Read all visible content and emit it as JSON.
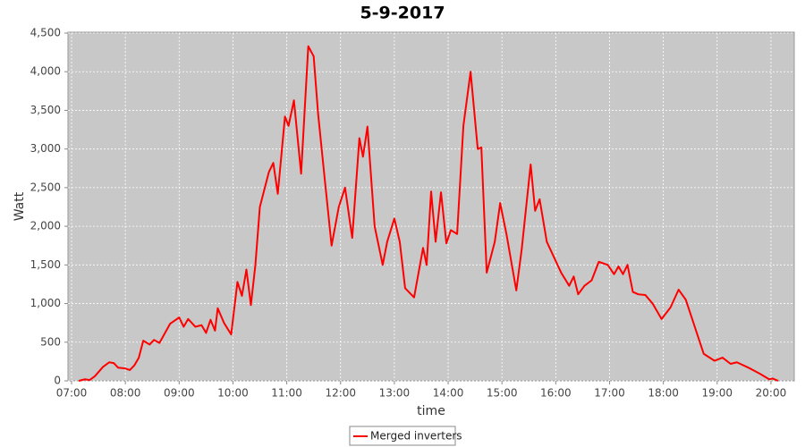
{
  "chart_data": {
    "type": "line",
    "title": "5-9-2017",
    "xlabel": "time",
    "ylabel": "Watt",
    "x": [
      "07:08",
      "07:15",
      "07:20",
      "07:26",
      "07:35",
      "07:42",
      "07:47",
      "07:52",
      "08:00",
      "08:05",
      "08:10",
      "08:15",
      "08:20",
      "08:27",
      "08:32",
      "08:38",
      "08:50",
      "09:00",
      "09:05",
      "09:10",
      "09:18",
      "09:25",
      "09:30",
      "09:35",
      "09:40",
      "09:43",
      "09:50",
      "09:58",
      "10:05",
      "10:10",
      "10:15",
      "10:20",
      "10:25",
      "10:30",
      "10:40",
      "10:45",
      "10:50",
      "10:58",
      "11:02",
      "11:08",
      "11:16",
      "11:24",
      "11:30",
      "11:35",
      "11:42",
      "11:50",
      "11:58",
      "12:05",
      "12:13",
      "12:21",
      "12:25",
      "12:30",
      "12:38",
      "12:47",
      "12:52",
      "13:00",
      "13:06",
      "13:12",
      "13:22",
      "13:32",
      "13:36",
      "13:41",
      "13:46",
      "13:52",
      "13:58",
      "14:03",
      "14:10",
      "14:17",
      "14:25",
      "14:33",
      "14:37",
      "14:43",
      "14:52",
      "14:58",
      "15:05",
      "15:16",
      "15:22",
      "15:32",
      "15:37",
      "15:42",
      "15:50",
      "15:58",
      "16:06",
      "16:15",
      "16:20",
      "16:25",
      "16:32",
      "16:40",
      "16:48",
      "16:58",
      "17:05",
      "17:10",
      "17:15",
      "17:20",
      "17:26",
      "17:32",
      "17:40",
      "17:48",
      "17:58",
      "18:08",
      "18:17",
      "18:25",
      "18:35",
      "18:45",
      "18:57",
      "19:06",
      "19:15",
      "19:22",
      "19:35",
      "19:48",
      "19:58",
      "20:02",
      "20:08"
    ],
    "series": [
      {
        "name": "Merged inverters",
        "color": "#ff0000",
        "values": [
          0,
          20,
          10,
          60,
          180,
          240,
          230,
          170,
          160,
          140,
          200,
          300,
          520,
          470,
          530,
          490,
          740,
          820,
          700,
          800,
          700,
          720,
          620,
          790,
          650,
          940,
          750,
          600,
          1280,
          1100,
          1440,
          980,
          1500,
          2250,
          2700,
          2820,
          2420,
          3420,
          3300,
          3630,
          2680,
          4330,
          4200,
          3450,
          2650,
          1750,
          2250,
          2500,
          1850,
          3140,
          2900,
          3290,
          2000,
          1500,
          1800,
          2100,
          1800,
          1200,
          1080,
          1720,
          1500,
          2450,
          1800,
          2440,
          1780,
          1950,
          1900,
          3300,
          4000,
          3000,
          3020,
          1400,
          1800,
          2300,
          1900,
          1170,
          1700,
          2800,
          2200,
          2350,
          1800,
          1600,
          1400,
          1230,
          1350,
          1120,
          1230,
          1300,
          1540,
          1500,
          1380,
          1480,
          1380,
          1500,
          1150,
          1120,
          1110,
          1000,
          800,
          950,
          1180,
          1050,
          700,
          350,
          260,
          300,
          220,
          240,
          170,
          90,
          20,
          30,
          0
        ]
      }
    ],
    "xlim": [
      "06:56",
      "20:26"
    ],
    "xticks": [
      "07:00",
      "08:00",
      "09:00",
      "10:00",
      "11:00",
      "12:00",
      "13:00",
      "14:00",
      "15:00",
      "16:00",
      "17:00",
      "18:00",
      "19:00",
      "20:00"
    ],
    "ylim": [
      0,
      4500
    ],
    "yticks": [
      0,
      500,
      {
        "value": 1000,
        "label": "1,000"
      },
      {
        "value": 1500,
        "label": "1,500"
      },
      {
        "value": 2000,
        "label": "2,000"
      },
      {
        "value": 2500,
        "label": "2,500"
      },
      {
        "value": 3000,
        "label": "3,000"
      },
      {
        "value": 3500,
        "label": "3,500"
      },
      {
        "value": 4000,
        "label": "4,000"
      },
      {
        "value": 4500,
        "label": "4,500"
      }
    ],
    "grid": true,
    "legend": "bottom"
  }
}
